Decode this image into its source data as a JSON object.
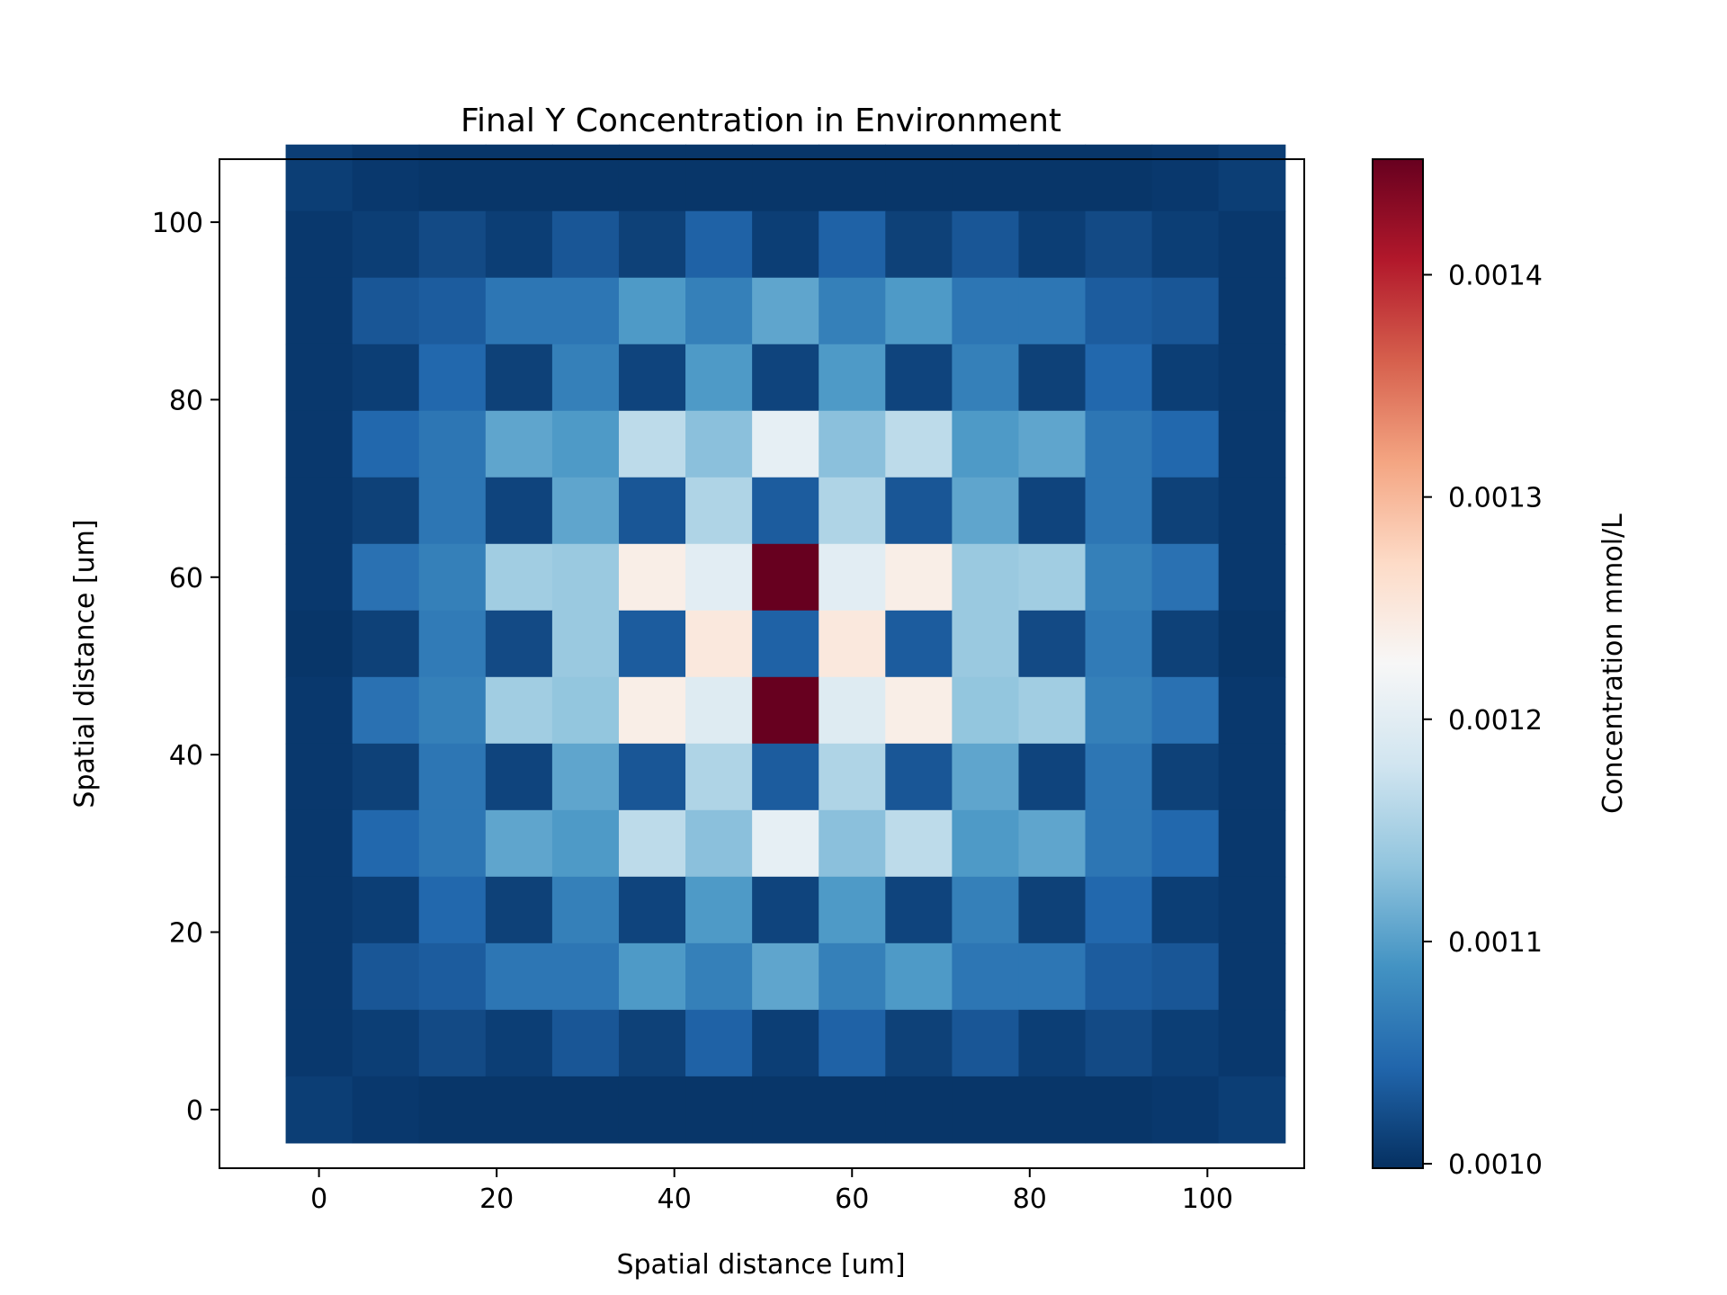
{
  "chart_data": {
    "type": "heatmap",
    "title": "Final Y Concentration in Environment",
    "xlabel": "Spatial distance [um]",
    "ylabel": "Spatial distance [um]",
    "colorbar_label": "Concentration mmol/L",
    "x_ticks": [
      0,
      20,
      40,
      60,
      80,
      100
    ],
    "y_ticks": [
      0,
      20,
      40,
      60,
      80,
      100
    ],
    "xlim": [
      -11.2,
      110.9
    ],
    "ylim": [
      -6.6,
      107.1
    ],
    "cell_x": [
      0,
      7.5,
      15,
      22.5,
      30,
      37.5,
      45,
      52.5,
      60,
      67.5,
      75,
      82.5,
      90,
      97.5,
      105
    ],
    "cell_y": [
      0,
      7.5,
      15,
      22.5,
      30,
      37.5,
      45,
      52.5,
      60,
      67.5,
      75,
      82.5,
      90,
      97.5,
      105
    ],
    "colorbar_ticks": [
      "0.0010",
      "0.0011",
      "0.0012",
      "0.0013",
      "0.0014"
    ],
    "colorbar_range": [
      0.000998,
      0.001452
    ],
    "colormap": "RdBu_r",
    "colormap_stops": [
      "#053061",
      "#2166ac",
      "#4393c3",
      "#92c5de",
      "#d1e5f0",
      "#f7f7f7",
      "#fddbc7",
      "#f4a582",
      "#d6604d",
      "#b2182b",
      "#67001f"
    ],
    "values_rows_top_to_bottom": [
      [
        0.00101,
        0.001005,
        0.001003,
        0.001003,
        0.001003,
        0.001003,
        0.001003,
        0.001003,
        0.001003,
        0.001003,
        0.001003,
        0.001003,
        0.001003,
        0.001005,
        0.00101
      ],
      [
        0.001005,
        0.00101,
        0.00102,
        0.00101,
        0.00103,
        0.001012,
        0.00104,
        0.00101,
        0.00104,
        0.001012,
        0.00103,
        0.00101,
        0.00102,
        0.00101,
        0.001005
      ],
      [
        0.001005,
        0.00103,
        0.001035,
        0.00106,
        0.00106,
        0.001095,
        0.00107,
        0.001105,
        0.00107,
        0.001095,
        0.00106,
        0.00106,
        0.001035,
        0.00103,
        0.001005
      ],
      [
        0.001005,
        0.00101,
        0.001045,
        0.001012,
        0.00107,
        0.001015,
        0.001095,
        0.001015,
        0.001095,
        0.001015,
        0.00107,
        0.001012,
        0.001045,
        0.00101,
        0.001005
      ],
      [
        0.001005,
        0.001045,
        0.00106,
        0.001105,
        0.001095,
        0.001165,
        0.00113,
        0.001205,
        0.00113,
        0.001165,
        0.001095,
        0.001105,
        0.00106,
        0.001045,
        0.001005
      ],
      [
        0.001005,
        0.001012,
        0.00106,
        0.001015,
        0.001105,
        0.00103,
        0.001155,
        0.001035,
        0.001155,
        0.00103,
        0.001105,
        0.001015,
        0.00106,
        0.001012,
        0.001005
      ],
      [
        0.001005,
        0.001055,
        0.00107,
        0.001145,
        0.00114,
        0.00124,
        0.0012,
        0.001452,
        0.0012,
        0.00124,
        0.00114,
        0.001145,
        0.00107,
        0.001055,
        0.001005
      ],
      [
        0.001003,
        0.001012,
        0.001065,
        0.00102,
        0.00114,
        0.001035,
        0.00125,
        0.00104,
        0.00125,
        0.001035,
        0.00114,
        0.00102,
        0.001065,
        0.001012,
        0.001003
      ],
      [
        0.001005,
        0.001055,
        0.00107,
        0.001145,
        0.001135,
        0.00124,
        0.001195,
        0.001452,
        0.001195,
        0.00124,
        0.001135,
        0.001145,
        0.00107,
        0.001055,
        0.001005
      ],
      [
        0.001005,
        0.001012,
        0.00106,
        0.001015,
        0.001105,
        0.00103,
        0.001155,
        0.001035,
        0.001155,
        0.00103,
        0.001105,
        0.001015,
        0.00106,
        0.001012,
        0.001005
      ],
      [
        0.001005,
        0.001045,
        0.00106,
        0.001105,
        0.001095,
        0.001165,
        0.00113,
        0.001205,
        0.00113,
        0.001165,
        0.001095,
        0.001105,
        0.00106,
        0.001045,
        0.001005
      ],
      [
        0.001005,
        0.00101,
        0.001045,
        0.001012,
        0.00107,
        0.001015,
        0.001095,
        0.001015,
        0.001095,
        0.001015,
        0.00107,
        0.001012,
        0.001045,
        0.00101,
        0.001005
      ],
      [
        0.001005,
        0.00103,
        0.001035,
        0.00106,
        0.00106,
        0.001095,
        0.00107,
        0.001105,
        0.00107,
        0.001095,
        0.00106,
        0.00106,
        0.001035,
        0.00103,
        0.001005
      ],
      [
        0.001005,
        0.00101,
        0.00102,
        0.00101,
        0.00103,
        0.001012,
        0.00104,
        0.00101,
        0.00104,
        0.001012,
        0.00103,
        0.00101,
        0.00102,
        0.00101,
        0.001005
      ],
      [
        0.00101,
        0.001005,
        0.001003,
        0.001003,
        0.001003,
        0.001003,
        0.001003,
        0.001003,
        0.001003,
        0.001003,
        0.001003,
        0.001003,
        0.001003,
        0.001005,
        0.00101
      ]
    ]
  }
}
